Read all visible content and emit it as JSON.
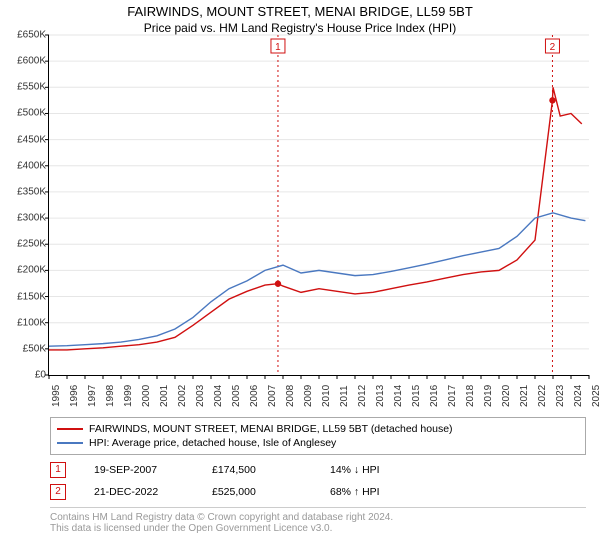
{
  "title": "FAIRWINDS, MOUNT STREET, MENAI BRIDGE, LL59 5BT",
  "subtitle": "Price paid vs. HM Land Registry's House Price Index (HPI)",
  "chart": {
    "type": "line",
    "background_color": "#ffffff",
    "grid_color": "#e6e6e6",
    "axis_color": "#000000",
    "tick_font_size": 10,
    "ylim": [
      0,
      650000
    ],
    "ytick_step": 50000,
    "y_format_prefix": "£",
    "y_format_suffix": "K",
    "xlim": [
      1995,
      2025
    ],
    "xtick_step": 1,
    "series": [
      {
        "id": "property",
        "label": "FAIRWINDS, MOUNT STREET, MENAI BRIDGE, LL59 5BT (detached house)",
        "color": "#d01010",
        "line_width": 1.4,
        "data": [
          [
            1995,
            48000
          ],
          [
            1996,
            48000
          ],
          [
            1997,
            50000
          ],
          [
            1998,
            52000
          ],
          [
            1999,
            55000
          ],
          [
            2000,
            58000
          ],
          [
            2001,
            63000
          ],
          [
            2002,
            72000
          ],
          [
            2003,
            95000
          ],
          [
            2004,
            120000
          ],
          [
            2005,
            145000
          ],
          [
            2006,
            160000
          ],
          [
            2007,
            172000
          ],
          [
            2007.72,
            174500
          ],
          [
            2008,
            170000
          ],
          [
            2009,
            158000
          ],
          [
            2010,
            165000
          ],
          [
            2011,
            160000
          ],
          [
            2012,
            155000
          ],
          [
            2013,
            158000
          ],
          [
            2014,
            165000
          ],
          [
            2015,
            172000
          ],
          [
            2016,
            178000
          ],
          [
            2017,
            185000
          ],
          [
            2018,
            192000
          ],
          [
            2019,
            197000
          ],
          [
            2020,
            200000
          ],
          [
            2021,
            220000
          ],
          [
            2022,
            258000
          ],
          [
            2022.97,
            525000
          ],
          [
            2023,
            550000
          ],
          [
            2023.4,
            495000
          ],
          [
            2024,
            500000
          ],
          [
            2024.6,
            480000
          ]
        ]
      },
      {
        "id": "hpi",
        "label": "HPI: Average price, detached house, Isle of Anglesey",
        "color": "#4a78c0",
        "line_width": 1.4,
        "data": [
          [
            1995,
            55000
          ],
          [
            1996,
            56000
          ],
          [
            1997,
            58000
          ],
          [
            1998,
            60000
          ],
          [
            1999,
            63000
          ],
          [
            2000,
            68000
          ],
          [
            2001,
            75000
          ],
          [
            2002,
            88000
          ],
          [
            2003,
            110000
          ],
          [
            2004,
            140000
          ],
          [
            2005,
            165000
          ],
          [
            2006,
            180000
          ],
          [
            2007,
            200000
          ],
          [
            2008,
            210000
          ],
          [
            2009,
            195000
          ],
          [
            2010,
            200000
          ],
          [
            2011,
            195000
          ],
          [
            2012,
            190000
          ],
          [
            2013,
            192000
          ],
          [
            2014,
            198000
          ],
          [
            2015,
            205000
          ],
          [
            2016,
            212000
          ],
          [
            2017,
            220000
          ],
          [
            2018,
            228000
          ],
          [
            2019,
            235000
          ],
          [
            2020,
            242000
          ],
          [
            2021,
            265000
          ],
          [
            2022,
            300000
          ],
          [
            2023,
            310000
          ],
          [
            2024,
            300000
          ],
          [
            2024.8,
            295000
          ]
        ]
      }
    ],
    "markers": [
      {
        "n": "1",
        "x": 2007.72,
        "y": 174500,
        "color": "#d01010",
        "date": "19-SEP-2007",
        "price": "£174,500",
        "delta": "14% ↓ HPI",
        "vline": true
      },
      {
        "n": "2",
        "x": 2022.97,
        "y": 525000,
        "color": "#d01010",
        "date": "21-DEC-2022",
        "price": "£525,000",
        "delta": "68% ↑ HPI",
        "vline": true
      }
    ]
  },
  "footer_line1": "Contains HM Land Registry data © Crown copyright and database right 2024.",
  "footer_line2": "This data is licensed under the Open Government Licence v3.0."
}
